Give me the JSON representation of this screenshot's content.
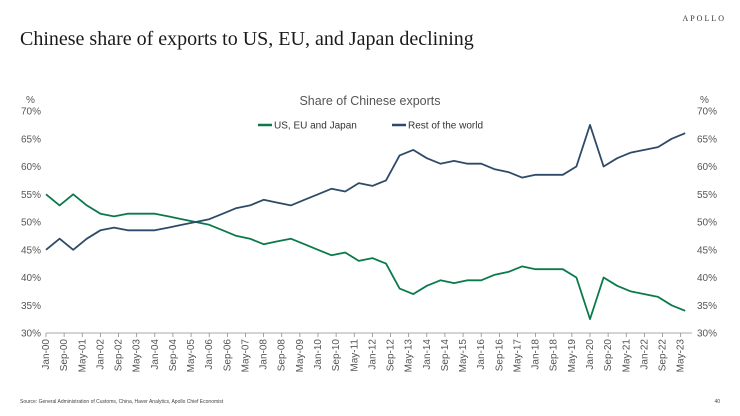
{
  "header": {
    "brand": "APOLLO",
    "title": "Chinese share of exports to US, EU, and Japan declining"
  },
  "footer": {
    "source": "Source: General Administration of Customs, China, Haver Analytics, Apollo Chief Economist",
    "page": "40"
  },
  "colors": {
    "series1": "#0b7a4b",
    "series2": "#2f4a68",
    "axis": "#8c8c8c",
    "text": "#555555"
  },
  "chart_data": {
    "type": "line",
    "title": "Share of Chinese exports",
    "ylabel_left": "%",
    "ylabel_right": "%",
    "ylim": [
      30,
      70
    ],
    "yticks": [
      "30%",
      "35%",
      "40%",
      "45%",
      "50%",
      "55%",
      "60%",
      "65%",
      "70%"
    ],
    "xlim": [
      2000.0,
      2023.75
    ],
    "xticks": [
      "Jan-00",
      "Sep-00",
      "May-01",
      "Jan-02",
      "Sep-02",
      "May-03",
      "Jan-04",
      "Sep-04",
      "May-05",
      "Jan-06",
      "Sep-06",
      "May-07",
      "Jan-08",
      "Sep-08",
      "May-09",
      "Jan-10",
      "Sep-10",
      "May-11",
      "Jan-12",
      "Sep-12",
      "May-13",
      "Jan-14",
      "Sep-14",
      "May-15",
      "Jan-16",
      "Sep-16",
      "May-17",
      "Jan-18",
      "Sep-18",
      "May-19",
      "Jan-20",
      "Sep-20",
      "May-21",
      "Jan-22",
      "Sep-22",
      "May-23"
    ],
    "x": [
      2000.0,
      2000.5,
      2001.0,
      2001.5,
      2002.0,
      2002.5,
      2003.0,
      2003.5,
      2004.0,
      2004.5,
      2005.0,
      2005.5,
      2006.0,
      2006.5,
      2007.0,
      2007.5,
      2008.0,
      2008.5,
      2009.0,
      2009.5,
      2010.0,
      2010.5,
      2011.0,
      2011.5,
      2012.0,
      2012.5,
      2013.0,
      2013.5,
      2014.0,
      2014.5,
      2015.0,
      2015.5,
      2016.0,
      2016.5,
      2017.0,
      2017.5,
      2018.0,
      2018.5,
      2019.0,
      2019.5,
      2020.0,
      2020.5,
      2021.0,
      2021.5,
      2022.0,
      2022.5,
      2023.0,
      2023.5
    ],
    "series": [
      {
        "name": "US, EU and Japan",
        "values": [
          55.0,
          53.0,
          55.0,
          53.0,
          51.5,
          51.0,
          51.5,
          51.5,
          51.5,
          51.0,
          50.5,
          50.0,
          49.5,
          48.5,
          47.5,
          47.0,
          46.0,
          46.5,
          47.0,
          46.0,
          45.0,
          44.0,
          44.5,
          43.0,
          43.5,
          42.5,
          38.0,
          37.0,
          38.5,
          39.5,
          39.0,
          39.5,
          39.5,
          40.5,
          41.0,
          42.0,
          41.5,
          41.5,
          41.5,
          40.0,
          32.5,
          40.0,
          38.5,
          37.5,
          37.0,
          36.5,
          35.0,
          34.0
        ]
      },
      {
        "name": "Rest of the world",
        "values": [
          45.0,
          47.0,
          45.0,
          47.0,
          48.5,
          49.0,
          48.5,
          48.5,
          48.5,
          49.0,
          49.5,
          50.0,
          50.5,
          51.5,
          52.5,
          53.0,
          54.0,
          53.5,
          53.0,
          54.0,
          55.0,
          56.0,
          55.5,
          57.0,
          56.5,
          57.5,
          62.0,
          63.0,
          61.5,
          60.5,
          61.0,
          60.5,
          60.5,
          59.5,
          59.0,
          58.0,
          58.5,
          58.5,
          58.5,
          60.0,
          67.5,
          60.0,
          61.5,
          62.5,
          63.0,
          63.5,
          65.0,
          66.0
        ]
      }
    ],
    "legend": "top-center"
  }
}
